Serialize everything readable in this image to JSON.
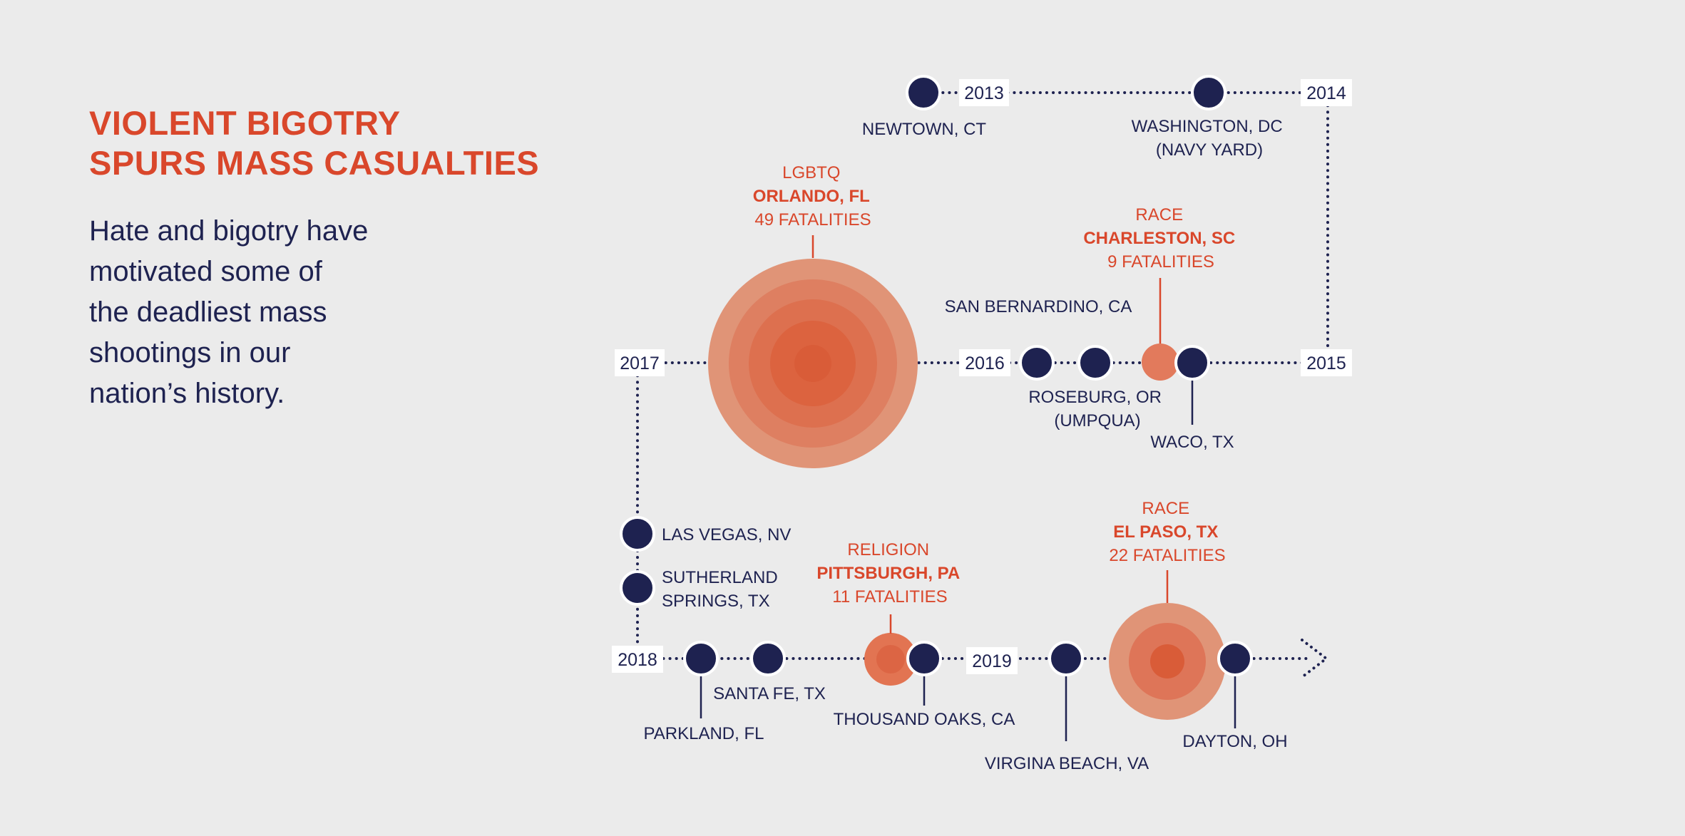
{
  "heading": {
    "line1": "VIOLENT BIGOTRY",
    "line2": "SPURS MASS CASUALTIES"
  },
  "intro": {
    "line1": "Hate and bigotry have",
    "line2": "motivated some of",
    "line3": "the deadliest mass",
    "line4": "shootings in our",
    "line5": "nation’s history."
  },
  "colors": {
    "navy": "#1e2250",
    "accent": "#d9472b",
    "background": "#ebebeb"
  },
  "years": [
    "2013",
    "2014",
    "2015",
    "2016",
    "2017",
    "2018",
    "2019"
  ],
  "events": [
    {
      "place": [
        "NEWTOWN, CT"
      ]
    },
    {
      "place": [
        "WASHINGTON, DC",
        "(NAVY YARD)"
      ]
    },
    {
      "place": [
        "SAN BERNARDINO, CA"
      ]
    },
    {
      "place": [
        "ROSEBURG, OR",
        "(UMPQUA)"
      ]
    },
    {
      "place": [
        "WACO, TX"
      ]
    },
    {
      "place": [
        "LAS VEGAS, NV"
      ]
    },
    {
      "place": [
        "SUTHERLAND",
        "SPRINGS, TX"
      ]
    },
    {
      "place": [
        "PARKLAND, FL"
      ]
    },
    {
      "place": [
        "SANTA FE, TX"
      ]
    },
    {
      "place": [
        "THOUSAND OAKS, CA"
      ]
    },
    {
      "place": [
        "VIRGINA BEACH, VA"
      ]
    },
    {
      "place": [
        "DAYTON, OH"
      ]
    }
  ],
  "hate_events": [
    {
      "category": "LGBTQ",
      "place": "ORLANDO, FL",
      "fatalities_label": "49 FATALITIES",
      "fatalities": 49
    },
    {
      "category": "RACE",
      "place": "CHARLESTON, SC",
      "fatalities_label": "9 FATALITIES",
      "fatalities": 9
    },
    {
      "category": "RELIGION",
      "place": "PITTSBURGH, PA",
      "fatalities_label": "11 FATALITIES",
      "fatalities": 11
    },
    {
      "category": "RACE",
      "place": "EL PASO, TX",
      "fatalities_label": "22 FATALITIES",
      "fatalities": 22
    }
  ]
}
